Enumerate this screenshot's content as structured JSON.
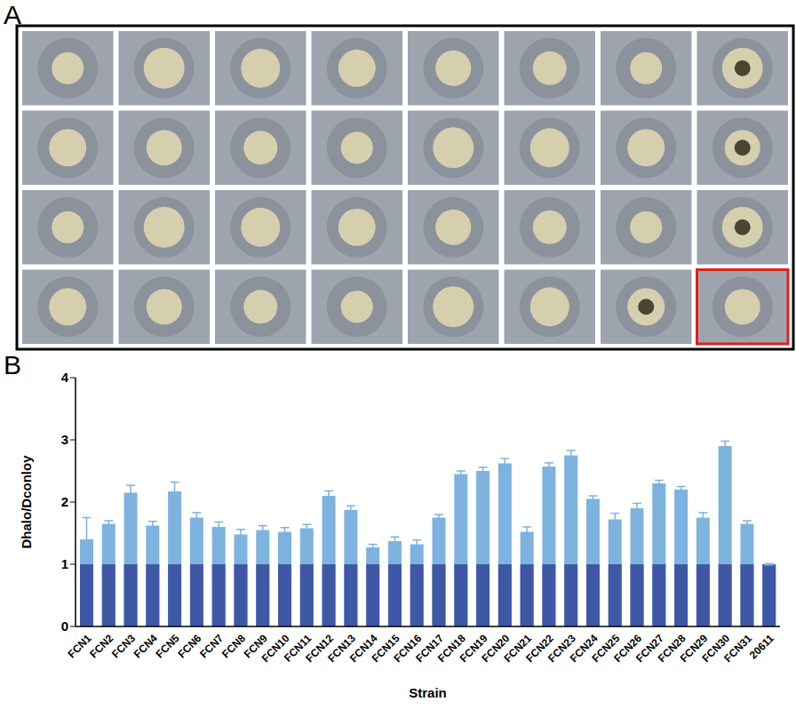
{
  "panel_labels": [
    "A",
    "B"
  ],
  "chart_data": {
    "type": "bar",
    "xlabel": "Strain",
    "ylabel": "Dhalo/Dconloy",
    "categories": [
      "FCN1",
      "FCN2",
      "FCN3",
      "FCN4",
      "FCN5",
      "FCN6",
      "FCN7",
      "FCN8",
      "FCN9",
      "FCN10",
      "FCN11",
      "FCN12",
      "FCN13",
      "FCN14",
      "FCN15",
      "FCN16",
      "FCN17",
      "FCN18",
      "FCN19",
      "FCN20",
      "FCN21",
      "FCN22",
      "FCN23",
      "FCN24",
      "FCN25",
      "FCN26",
      "FCN27",
      "FCN28",
      "FCN29",
      "FCN30",
      "FCN31",
      "20611"
    ],
    "series": [
      {
        "color": "#7db3de",
        "values": [
          1.4,
          1.65,
          2.15,
          1.62,
          2.17,
          1.75,
          1.6,
          1.48,
          1.55,
          1.52,
          1.58,
          2.1,
          1.87,
          1.27,
          1.37,
          1.32,
          1.75,
          2.45,
          2.5,
          2.62,
          1.52,
          2.57,
          2.75,
          2.05,
          1.72,
          1.9,
          2.3,
          2.2,
          1.75,
          2.9,
          1.65,
          1.0
        ],
        "errors": [
          0.35,
          0.05,
          0.12,
          0.07,
          0.15,
          0.08,
          0.08,
          0.08,
          0.07,
          0.07,
          0.06,
          0.08,
          0.07,
          0.05,
          0.07,
          0.07,
          0.05,
          0.05,
          0.06,
          0.08,
          0.08,
          0.06,
          0.08,
          0.05,
          0.1,
          0.08,
          0.05,
          0.05,
          0.08,
          0.08,
          0.05,
          0.01
        ]
      },
      {
        "color": "#3f58a6",
        "values": [
          1,
          1,
          1,
          1,
          1,
          1,
          1,
          1,
          1,
          1,
          1,
          1,
          1,
          1,
          1,
          1,
          1,
          1,
          1,
          1,
          1,
          1,
          1,
          1,
          1,
          1,
          1,
          1,
          1,
          1,
          1,
          1
        ]
      }
    ],
    "ylim": [
      0,
      4
    ],
    "yticks": [
      0,
      1,
      2,
      3,
      4
    ],
    "grid": false
  }
}
